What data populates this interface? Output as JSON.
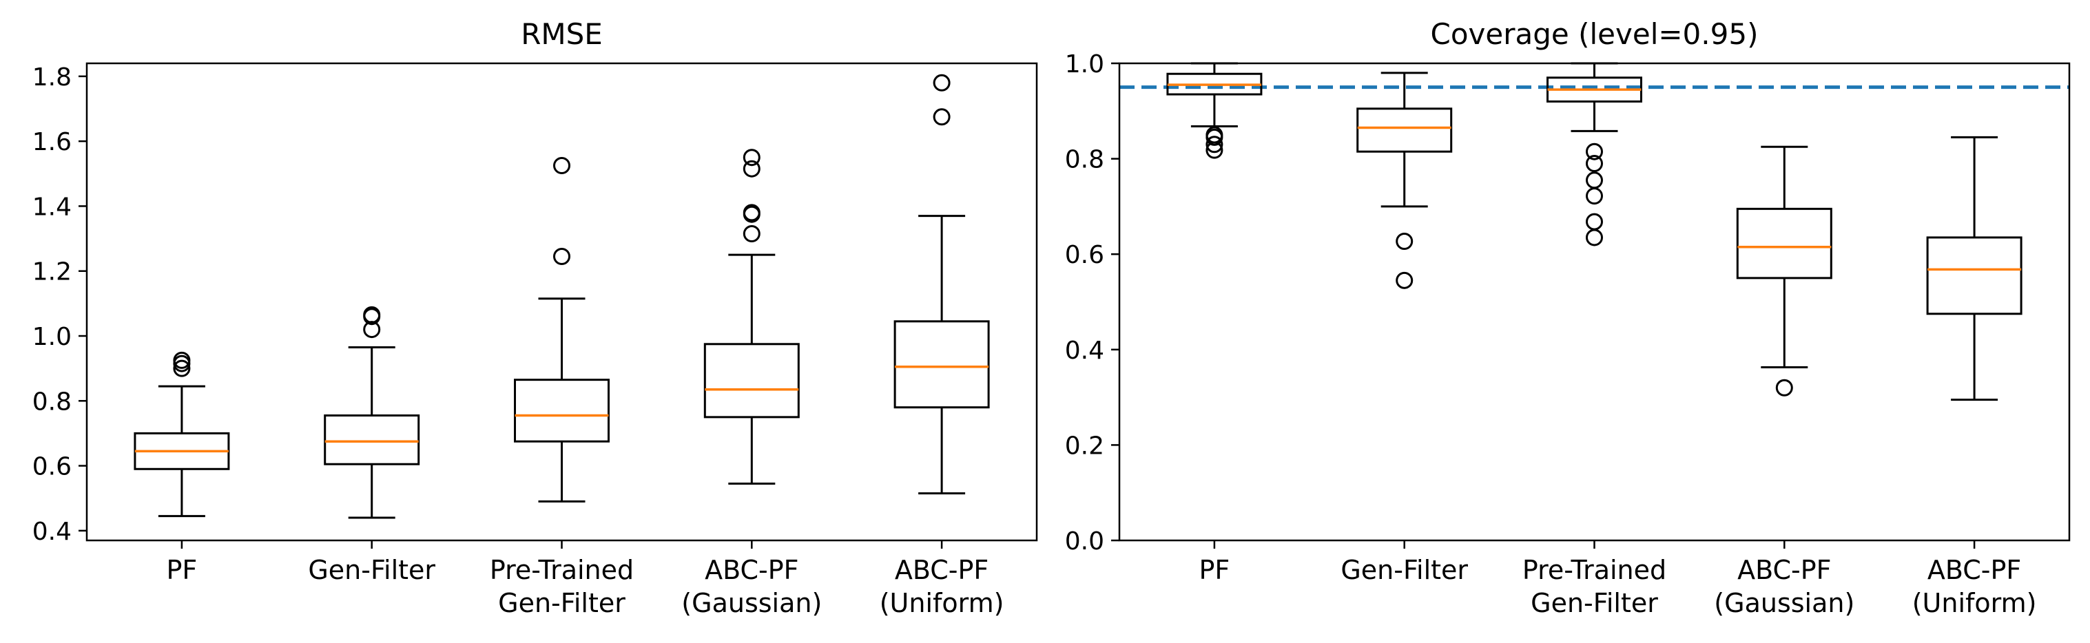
{
  "chart_data": [
    {
      "type": "boxplot",
      "title": "RMSE",
      "xlabel": "",
      "ylabel": "",
      "ylim": [
        0.37,
        1.84
      ],
      "yticks": [
        "0.4",
        "0.6",
        "0.8",
        "1.0",
        "1.2",
        "1.4",
        "1.6",
        "1.8"
      ],
      "categories": [
        [
          "PF"
        ],
        [
          "Gen-Filter"
        ],
        [
          "Pre-Trained",
          "Gen-Filter"
        ],
        [
          "ABC-PF",
          "(Gaussian)"
        ],
        [
          "ABC-PF",
          "(Uniform)"
        ]
      ],
      "boxes": [
        {
          "whisker_low": 0.445,
          "q1": 0.59,
          "median": 0.645,
          "q3": 0.7,
          "whisker_high": 0.845,
          "outliers": [
            0.9,
            0.915,
            0.925
          ]
        },
        {
          "whisker_low": 0.44,
          "q1": 0.605,
          "median": 0.675,
          "q3": 0.755,
          "whisker_high": 0.965,
          "outliers": [
            1.02,
            1.06,
            1.065
          ]
        },
        {
          "whisker_low": 0.49,
          "q1": 0.675,
          "median": 0.755,
          "q3": 0.865,
          "whisker_high": 1.115,
          "outliers": [
            1.245,
            1.525
          ]
        },
        {
          "whisker_low": 0.545,
          "q1": 0.75,
          "median": 0.835,
          "q3": 0.975,
          "whisker_high": 1.25,
          "outliers": [
            1.315,
            1.375,
            1.38,
            1.515,
            1.55
          ]
        },
        {
          "whisker_low": 0.515,
          "q1": 0.78,
          "median": 0.905,
          "q3": 1.045,
          "whisker_high": 1.37,
          "outliers": [
            1.675,
            1.78
          ]
        }
      ]
    },
    {
      "type": "boxplot",
      "title": "Coverage (level=0.95)",
      "xlabel": "",
      "ylabel": "",
      "ylim": [
        0.0,
        1.0
      ],
      "yticks": [
        "0.0",
        "0.2",
        "0.4",
        "0.6",
        "0.8",
        "1.0"
      ],
      "reference_line": {
        "value": 0.95,
        "style": "dashed",
        "color": "#1f77b4"
      },
      "categories": [
        [
          "PF"
        ],
        [
          "Gen-Filter"
        ],
        [
          "Pre-Trained",
          "Gen-Filter"
        ],
        [
          "ABC-PF",
          "(Gaussian)"
        ],
        [
          "ABC-PF",
          "(Uniform)"
        ]
      ],
      "boxes": [
        {
          "whisker_low": 0.868,
          "q1": 0.935,
          "median": 0.955,
          "q3": 0.978,
          "whisker_high": 1.0,
          "outliers": [
            0.818,
            0.83,
            0.845,
            0.85
          ]
        },
        {
          "whisker_low": 0.7,
          "q1": 0.815,
          "median": 0.865,
          "q3": 0.905,
          "whisker_high": 0.98,
          "outliers": [
            0.545,
            0.627
          ]
        },
        {
          "whisker_low": 0.858,
          "q1": 0.92,
          "median": 0.945,
          "q3": 0.97,
          "whisker_high": 1.0,
          "outliers": [
            0.635,
            0.668,
            0.722,
            0.755,
            0.79,
            0.815
          ]
        },
        {
          "whisker_low": 0.363,
          "q1": 0.55,
          "median": 0.615,
          "q3": 0.695,
          "whisker_high": 0.825,
          "outliers": [
            0.32
          ]
        },
        {
          "whisker_low": 0.295,
          "q1": 0.475,
          "median": 0.568,
          "q3": 0.635,
          "whisker_high": 0.845,
          "outliers": []
        }
      ]
    }
  ],
  "colors": {
    "box_edge": "#000000",
    "median": "#ff7f0e",
    "reference_line": "#1f77b4",
    "background": "#ffffff"
  }
}
